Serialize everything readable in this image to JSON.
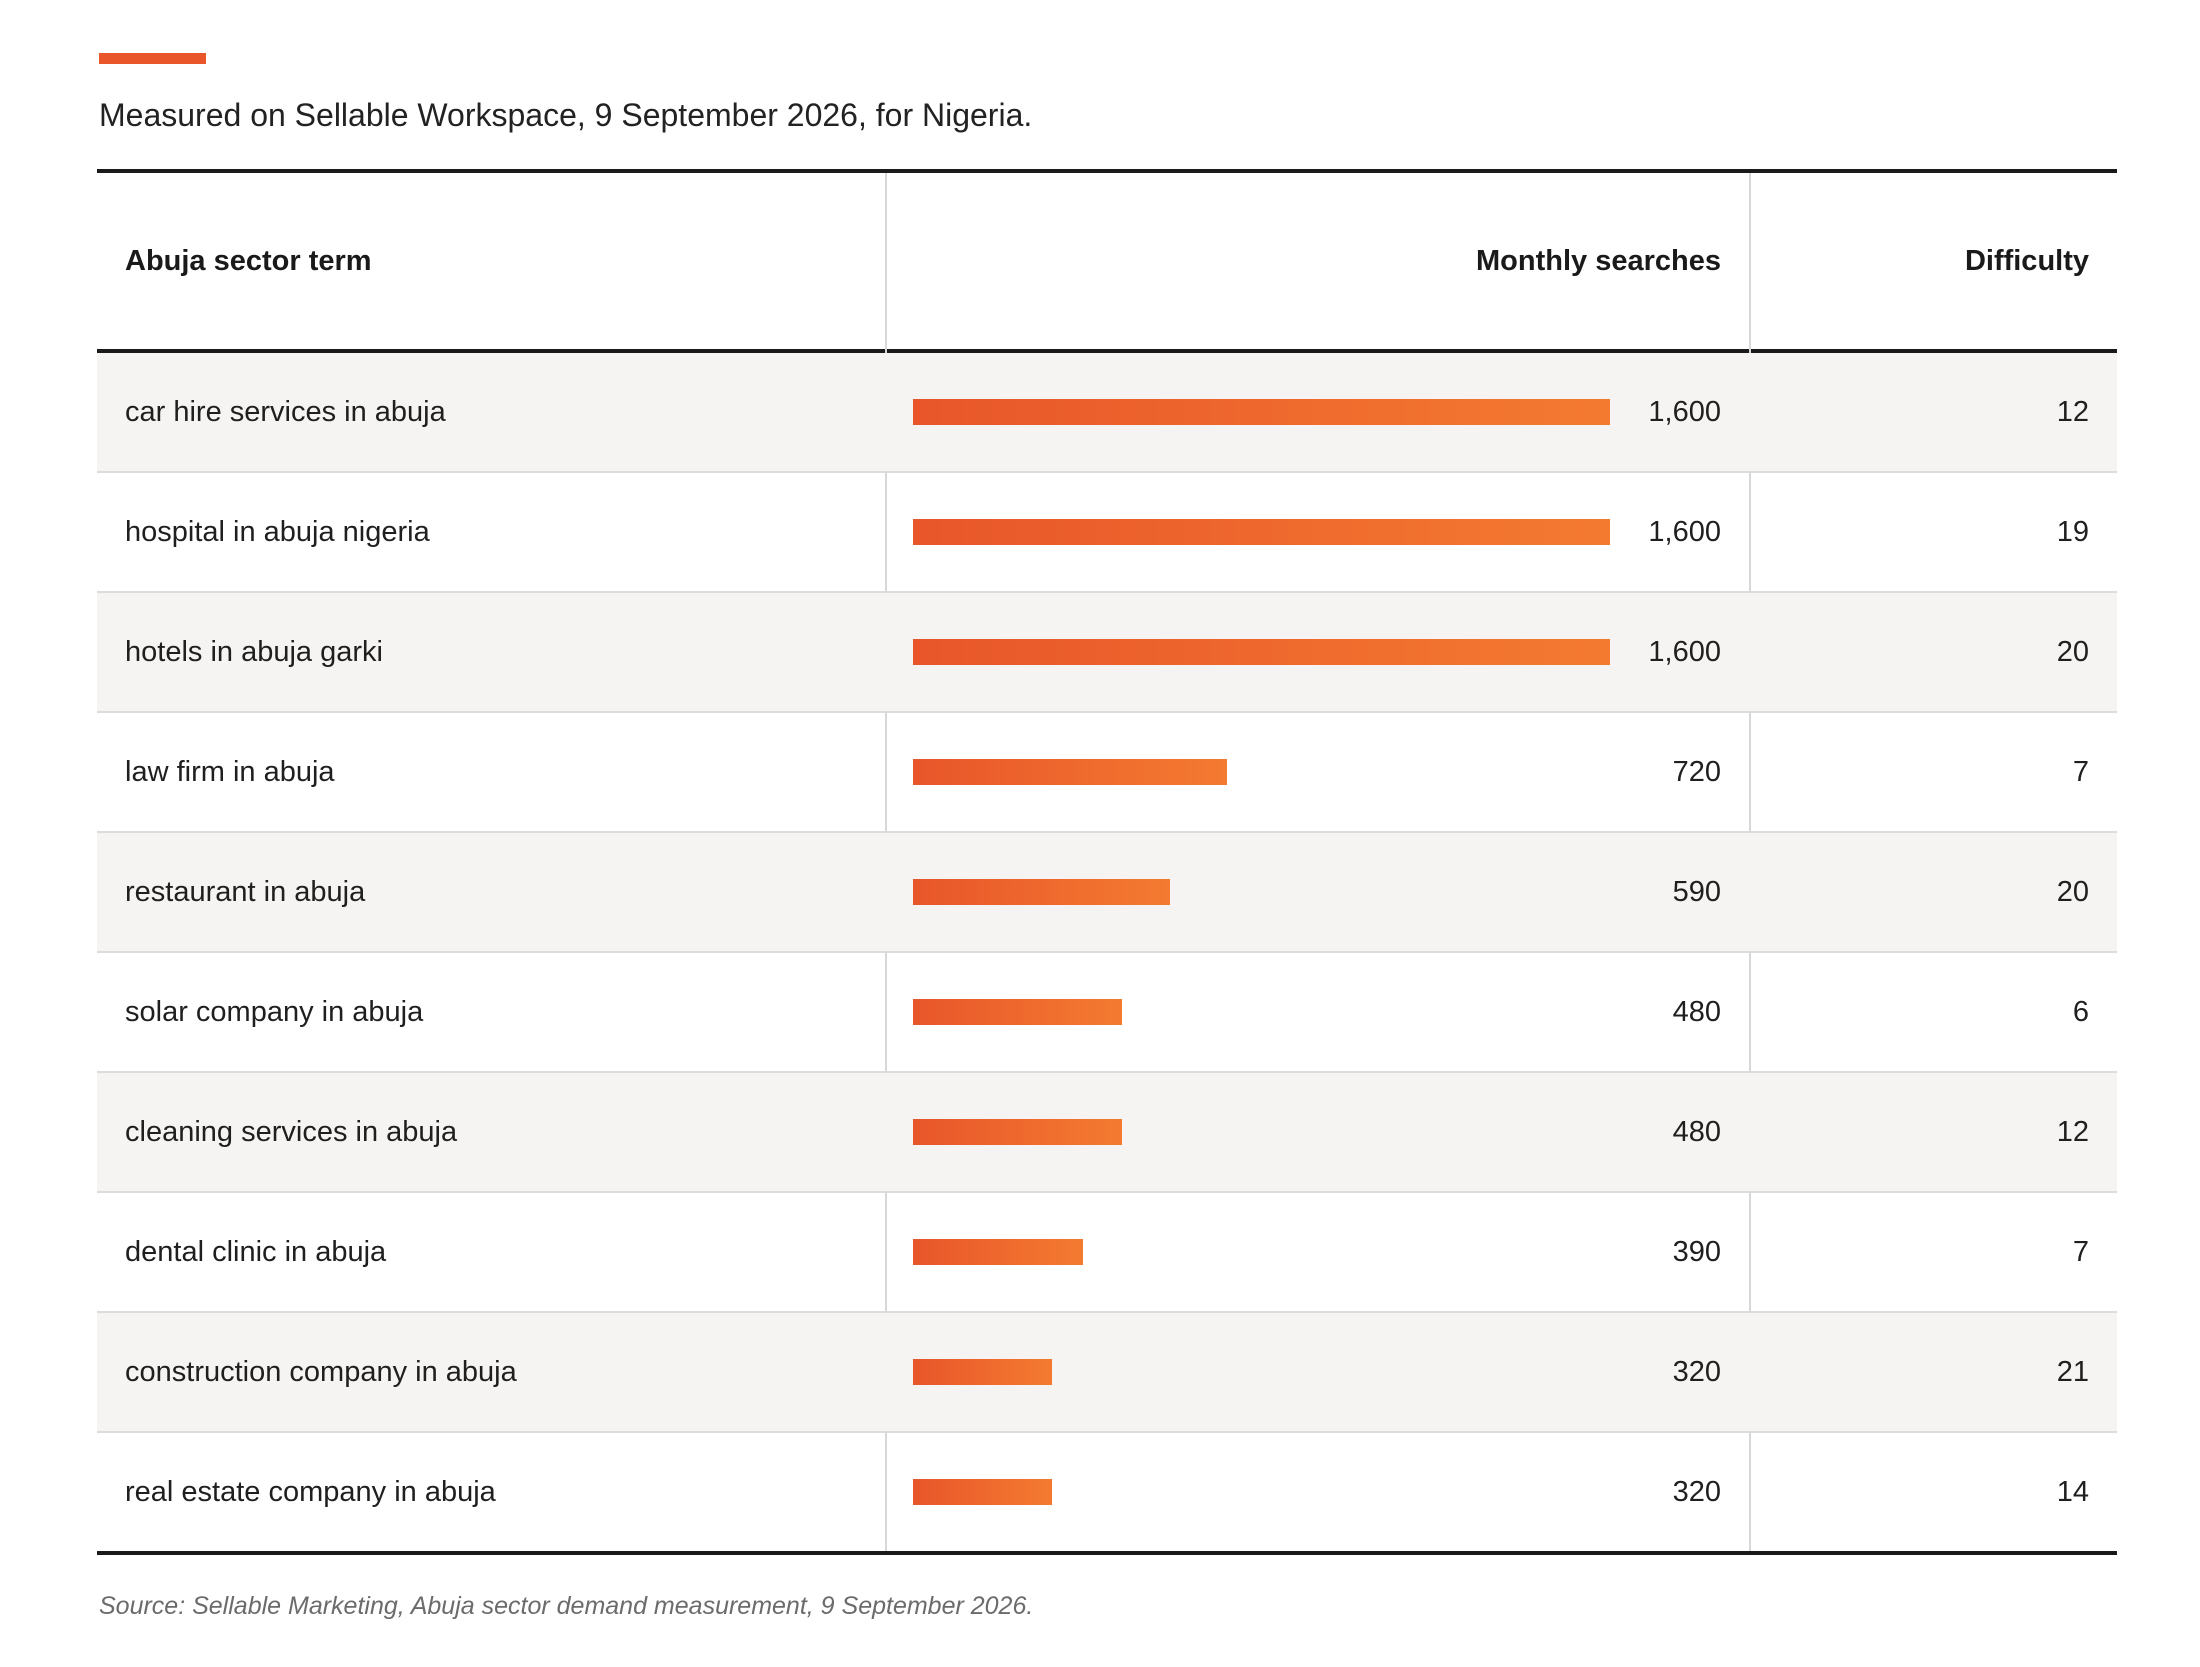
{
  "subtitle": "Measured on Sellable Workspace, 9 September 2026, for Nigeria.",
  "source": "Source: Sellable Marketing, Abuja sector demand measurement, 9 September 2026.",
  "colors": {
    "accent": "#e8562a",
    "bar_start": "#e8562a",
    "bar_end": "#f47a30",
    "row_shade": "#f5f4f2"
  },
  "chart_data": {
    "type": "table",
    "columns": [
      "Abuja sector term",
      "Monthly searches",
      "Difficulty"
    ],
    "bar_max": 1600,
    "rows": [
      {
        "term": "car hire services in abuja",
        "searches": 1600,
        "searches_label": "1,600",
        "difficulty": "12"
      },
      {
        "term": "hospital in abuja nigeria",
        "searches": 1600,
        "searches_label": "1,600",
        "difficulty": "19"
      },
      {
        "term": "hotels in abuja garki",
        "searches": 1600,
        "searches_label": "1,600",
        "difficulty": "20"
      },
      {
        "term": "law firm in abuja",
        "searches": 720,
        "searches_label": "720",
        "difficulty": "7"
      },
      {
        "term": "restaurant in abuja",
        "searches": 590,
        "searches_label": "590",
        "difficulty": "20"
      },
      {
        "term": "solar company in abuja",
        "searches": 480,
        "searches_label": "480",
        "difficulty": "6"
      },
      {
        "term": "cleaning services in abuja",
        "searches": 480,
        "searches_label": "480",
        "difficulty": "12"
      },
      {
        "term": "dental clinic in abuja",
        "searches": 390,
        "searches_label": "390",
        "difficulty": "7"
      },
      {
        "term": "construction company in abuja",
        "searches": 320,
        "searches_label": "320",
        "difficulty": "21"
      },
      {
        "term": "real estate company in abuja",
        "searches": 320,
        "searches_label": "320",
        "difficulty": "14"
      }
    ]
  }
}
